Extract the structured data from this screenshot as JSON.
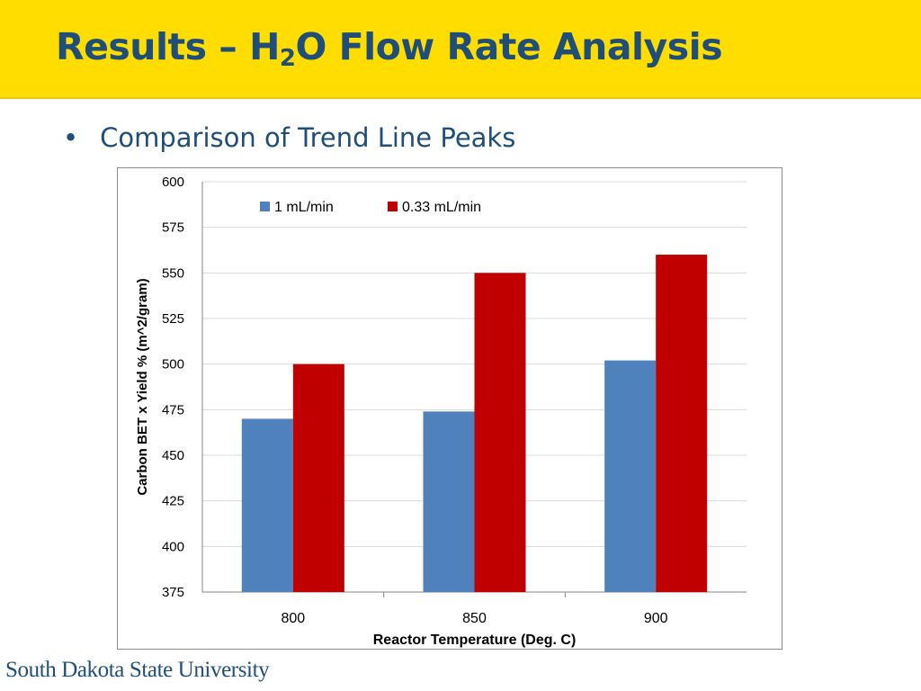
{
  "slide": {
    "title_main": "Results – H",
    "title_sub": "2",
    "title_rest": "O Flow Rate Analysis",
    "bullet_symbol": "•",
    "bullet_text": "Comparison of Trend Line Peaks",
    "footer_logo": "South Dakota State University"
  },
  "colors": {
    "title_bar": "#FFDD00",
    "title_text": "#1F4E79",
    "series_1": "#4F81BD",
    "series_2": "#C00000"
  },
  "chart_data": {
    "type": "bar",
    "title": "",
    "xlabel": "Reactor Temperature (Deg. C)",
    "ylabel": "Carbon BET x Yield % (m^2/gram)",
    "categories": [
      "800",
      "850",
      "900"
    ],
    "series": [
      {
        "name": "1 mL/min",
        "values": [
          470,
          474,
          502
        ]
      },
      {
        "name": "0.33 mL/min",
        "values": [
          500,
          550,
          560
        ]
      }
    ],
    "ylim": [
      375,
      600
    ],
    "yticks": [
      375,
      400,
      425,
      450,
      475,
      500,
      525,
      550,
      575,
      600
    ],
    "grid": true,
    "legend": "top-center"
  }
}
